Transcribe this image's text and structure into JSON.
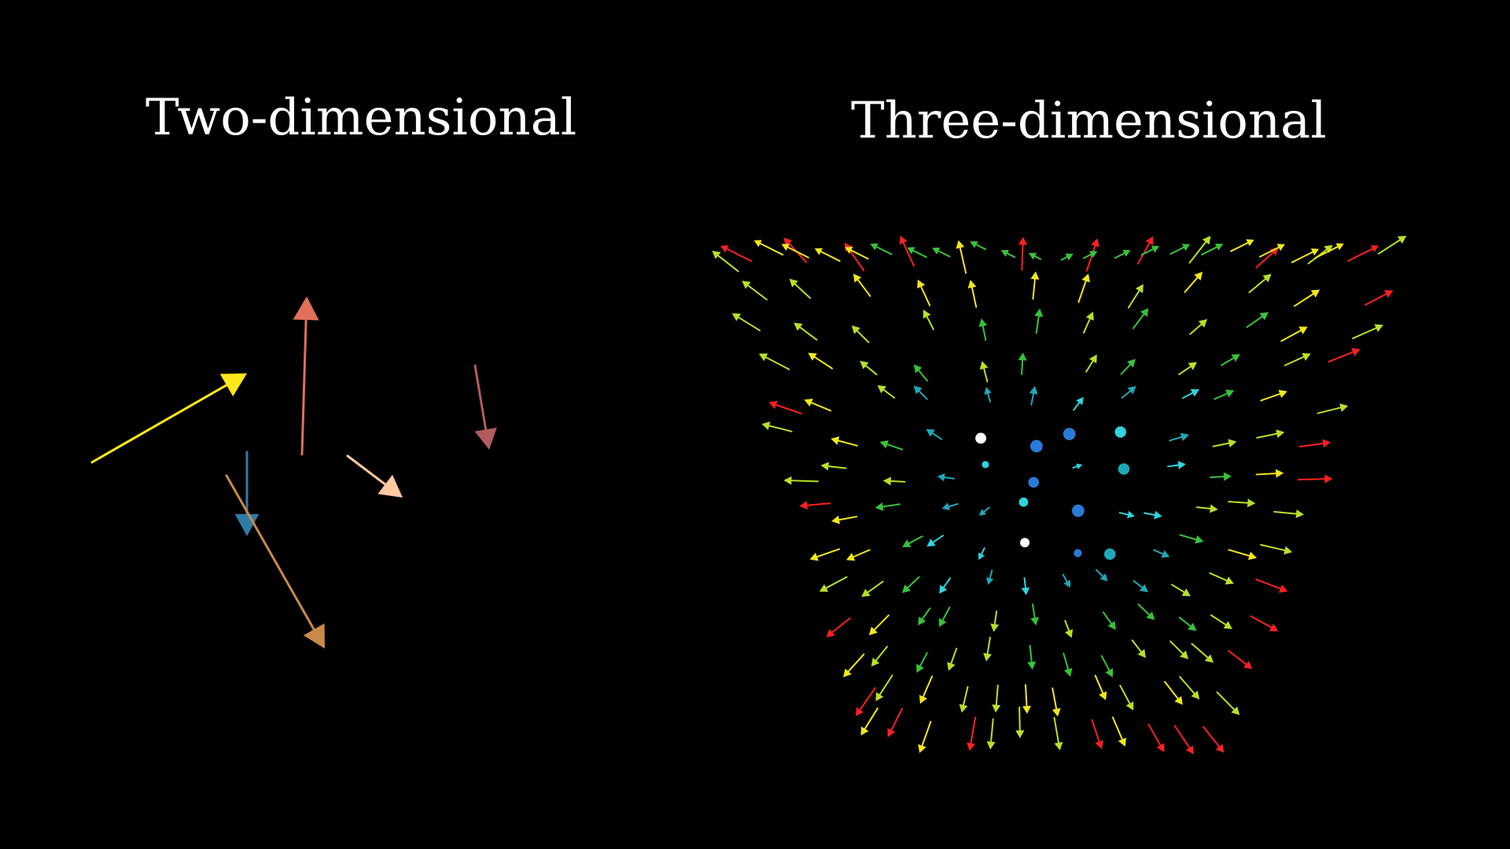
{
  "titles": {
    "two_d": "Two-dimensional",
    "three_d": "Three-dimensional"
  },
  "panels": {
    "two_d": {
      "arrows": [
        {
          "color": "#ffe81a"
        },
        {
          "color": "#e0705a"
        },
        {
          "color": "#2e7ca6"
        },
        {
          "color": "#c78a4a"
        },
        {
          "color": "#ffc9a0"
        },
        {
          "color": "#b35a5e"
        }
      ]
    },
    "three_d": {
      "palette": {
        "red": "#ff2020",
        "yellow": "#f2e81a",
        "yellow_green": "#b8e02a",
        "green": "#38c23a",
        "cyan": "#2fd4e0",
        "teal": "#1fa8b8",
        "blue": "#2a7ad8",
        "white": "#ffffff"
      }
    }
  }
}
